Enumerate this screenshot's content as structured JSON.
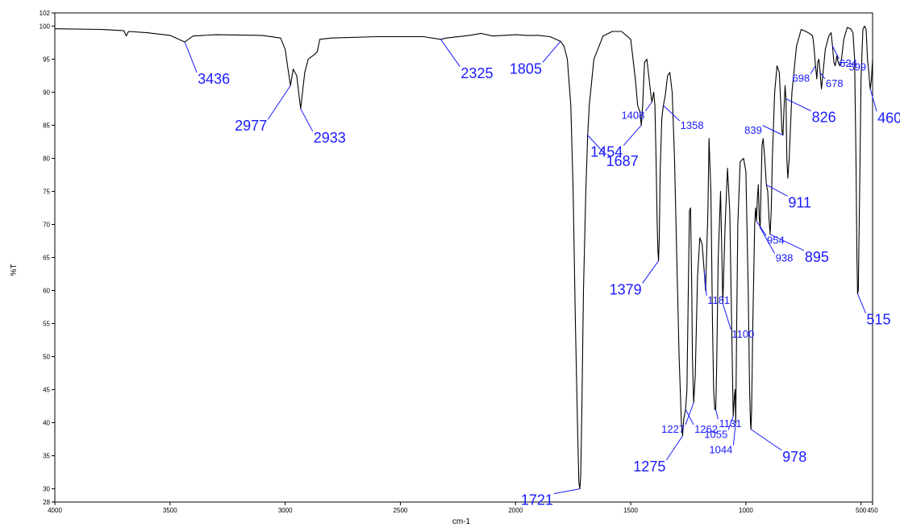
{
  "chart_data": {
    "type": "line",
    "title": "",
    "xlabel": "cm-1",
    "ylabel": "%T",
    "xlim": [
      4000,
      450
    ],
    "ylim": [
      28,
      102
    ],
    "xticks": [
      {
        "value": 4000,
        "label": "4000"
      },
      {
        "value": 3500,
        "label": "3500"
      },
      {
        "value": 3000,
        "label": "3000"
      },
      {
        "value": 2500,
        "label": "2500"
      },
      {
        "value": 2000,
        "label": "2000"
      },
      {
        "value": 1500,
        "label": "1500"
      },
      {
        "value": 1000,
        "label": "1000"
      },
      {
        "value": 500,
        "label": "500"
      },
      {
        "value": 450,
        "label": "450"
      }
    ],
    "yticks": [
      {
        "value": 28,
        "label": "28"
      },
      {
        "value": 30,
        "label": "30"
      },
      {
        "value": 35,
        "label": "35"
      },
      {
        "value": 40,
        "label": "40"
      },
      {
        "value": 45,
        "label": "45"
      },
      {
        "value": 50,
        "label": "50"
      },
      {
        "value": 55,
        "label": "55"
      },
      {
        "value": 60,
        "label": "60"
      },
      {
        "value": 65,
        "label": "65"
      },
      {
        "value": 70,
        "label": "70"
      },
      {
        "value": 75,
        "label": "75"
      },
      {
        "value": 80,
        "label": "80"
      },
      {
        "value": 85,
        "label": "85"
      },
      {
        "value": 90,
        "label": "90"
      },
      {
        "value": 95,
        "label": "95"
      },
      {
        "value": 100,
        "label": "100"
      },
      {
        "value": 102,
        "label": "102"
      }
    ],
    "series": [
      {
        "x": [
          4000,
          3800,
          3700,
          3690,
          3680,
          3600,
          3500,
          3436,
          3400,
          3300,
          3100,
          3020,
          3000,
          2990,
          2977,
          2965,
          2950,
          2933,
          2915,
          2900,
          2870,
          2860,
          2850,
          2800,
          2600,
          2400,
          2325,
          2300,
          2200,
          2150,
          2100,
          2000,
          1950,
          1900,
          1850,
          1805,
          1790,
          1775,
          1760,
          1750,
          1740,
          1730,
          1725,
          1721,
          1717,
          1712,
          1705,
          1695,
          1690,
          1687,
          1680,
          1660,
          1620,
          1580,
          1540,
          1500,
          1480,
          1470,
          1460,
          1454,
          1448,
          1440,
          1430,
          1420,
          1412,
          1408,
          1400,
          1395,
          1390,
          1385,
          1382,
          1379,
          1376,
          1372,
          1365,
          1358,
          1350,
          1340,
          1330,
          1320,
          1310,
          1300,
          1290,
          1280,
          1275,
          1270,
          1262,
          1256,
          1250,
          1245,
          1240,
          1235,
          1232,
          1227,
          1220,
          1210,
          1200,
          1190,
          1181,
          1175,
          1165,
          1160,
          1152,
          1145,
          1140,
          1135,
          1131,
          1127,
          1120,
          1110,
          1100,
          1090,
          1080,
          1070,
          1062,
          1055,
          1050,
          1047,
          1044,
          1040,
          1035,
          1025,
          1010,
          1000,
          990,
          984,
          980,
          978,
          975,
          970,
          962,
          958,
          954,
          950,
          946,
          942,
          938,
          934,
          930,
          925,
          918,
          911,
          905,
          900,
          895,
          890,
          885,
          875,
          865,
          855,
          848,
          843,
          839,
          835,
          830,
          826,
          822,
          818,
          812,
          800,
          780,
          760,
          740,
          720,
          710,
          705,
          698,
          692,
          688,
          683,
          678,
          672,
          665,
          655,
          640,
          630,
          624,
          618,
          612,
          605,
          599,
          592,
          585,
          575,
          560,
          545,
          535,
          528,
          522,
          518,
          515,
          512,
          508,
          500,
          492,
          485,
          478,
          472,
          466,
          462,
          460,
          455,
          450
        ],
        "y": [
          99.6,
          99.5,
          99.3,
          98.5,
          99.2,
          99.0,
          98.6,
          97.6,
          98.5,
          98.7,
          98.6,
          98.2,
          96.5,
          94.0,
          91.0,
          93.5,
          92.5,
          87.5,
          93.0,
          95.0,
          95.8,
          96.2,
          98.0,
          98.2,
          98.4,
          98.4,
          98.0,
          98.2,
          98.6,
          98.9,
          98.5,
          98.7,
          98.6,
          98.6,
          98.4,
          97.7,
          97.0,
          95.0,
          88.0,
          75.0,
          55.0,
          38.0,
          31.0,
          30.0,
          32.0,
          42.0,
          60.0,
          75.0,
          80.0,
          83.5,
          88.0,
          95.0,
          98.5,
          99.2,
          99.2,
          98.0,
          92.0,
          88.0,
          87.0,
          85.0,
          88.0,
          94.5,
          95.0,
          92.0,
          89.5,
          88.5,
          90.0,
          88.0,
          80.0,
          70.0,
          66.0,
          64.5,
          68.0,
          78.0,
          86.0,
          88.0,
          89.5,
          92.5,
          93.0,
          90.0,
          80.0,
          65.0,
          50.0,
          40.0,
          38.0,
          40.5,
          42.0,
          45.0,
          60.0,
          72.0,
          72.5,
          60.0,
          50.0,
          43.0,
          47.0,
          62.0,
          68.0,
          67.0,
          63.0,
          60.0,
          72.0,
          83.0,
          75.0,
          55.0,
          45.0,
          42.0,
          42.0,
          48.0,
          65.0,
          75.0,
          58.0,
          70.0,
          78.5,
          72.0,
          55.0,
          41.0,
          44.0,
          45.0,
          40.0,
          55.0,
          70.0,
          79.5,
          80.0,
          78.0,
          60.0,
          45.0,
          40.0,
          39.0,
          42.0,
          55.0,
          70.0,
          72.5,
          70.5,
          74.0,
          76.0,
          71.0,
          69.5,
          76.0,
          82.0,
          83.0,
          80.0,
          76.0,
          75.0,
          71.0,
          68.5,
          72.0,
          80.0,
          90.0,
          94.0,
          93.0,
          88.0,
          84.0,
          83.5,
          87.0,
          91.0,
          89.0,
          80.0,
          77.0,
          80.0,
          90.0,
          97.0,
          99.5,
          99.2,
          98.8,
          98.5,
          97.0,
          94.0,
          92.0,
          94.5,
          95.0,
          93.0,
          90.5,
          93.0,
          96.5,
          98.5,
          99.0,
          97.0,
          94.5,
          94.0,
          95.5,
          94.5,
          94.0,
          95.0,
          98.0,
          99.8,
          99.6,
          99.0,
          95.0,
          80.0,
          65.0,
          59.5,
          60.0,
          70.0,
          92.0,
          99.5,
          100.0,
          99.5,
          95.0,
          93.0,
          91.0,
          90.5,
          92.0,
          95.0
        ]
      }
    ],
    "annotations": [
      {
        "text": "3436",
        "x": 3436,
        "size": "big"
      },
      {
        "text": "2977",
        "x": 2977,
        "size": "big"
      },
      {
        "text": "2933",
        "x": 2933,
        "size": "big"
      },
      {
        "text": "2325",
        "x": 2325,
        "size": "big"
      },
      {
        "text": "1805",
        "x": 1805,
        "size": "big"
      },
      {
        "text": "1721",
        "x": 1721,
        "size": "big"
      },
      {
        "text": "1687",
        "x": 1687,
        "size": "big"
      },
      {
        "text": "1454",
        "x": 1454,
        "size": "big"
      },
      {
        "text": "1408",
        "x": 1408,
        "size": "small"
      },
      {
        "text": "1379",
        "x": 1379,
        "size": "big"
      },
      {
        "text": "1358",
        "x": 1358,
        "size": "small"
      },
      {
        "text": "1275",
        "x": 1275,
        "size": "big"
      },
      {
        "text": "1262",
        "x": 1262,
        "size": "small"
      },
      {
        "text": "1227",
        "x": 1227,
        "size": "small"
      },
      {
        "text": "1181",
        "x": 1181,
        "size": "small"
      },
      {
        "text": "1131",
        "x": 1131,
        "size": "small"
      },
      {
        "text": "1100",
        "x": 1100,
        "size": "small"
      },
      {
        "text": "1055",
        "x": 1055,
        "size": "small"
      },
      {
        "text": "1044",
        "x": 1044,
        "size": "small"
      },
      {
        "text": "978",
        "x": 978,
        "size": "big"
      },
      {
        "text": "954",
        "x": 954,
        "size": "small"
      },
      {
        "text": "938",
        "x": 938,
        "size": "small"
      },
      {
        "text": "911",
        "x": 911,
        "size": "big"
      },
      {
        "text": "895",
        "x": 895,
        "size": "big"
      },
      {
        "text": "839",
        "x": 839,
        "size": "small"
      },
      {
        "text": "826",
        "x": 826,
        "size": "big"
      },
      {
        "text": "698",
        "x": 698,
        "size": "small"
      },
      {
        "text": "678",
        "x": 678,
        "size": "small"
      },
      {
        "text": "624",
        "x": 624,
        "size": "small"
      },
      {
        "text": "599",
        "x": 599,
        "size": "small"
      },
      {
        "text": "515",
        "x": 515,
        "size": "big"
      },
      {
        "text": "460",
        "x": 460,
        "size": "big"
      }
    ],
    "colors": {
      "line": "#000000",
      "annotation": "#1a1aff"
    },
    "grid": false,
    "legend": "none"
  }
}
